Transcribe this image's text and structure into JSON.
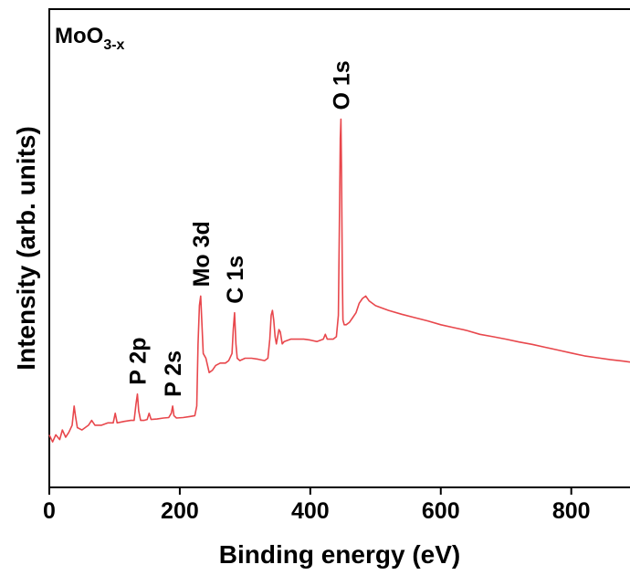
{
  "chart_data": {
    "type": "line",
    "sample_label": "MoO",
    "sample_label_sub": "3-x",
    "xlabel": "Binding energy (eV)",
    "ylabel": "Intensity (arb. units)",
    "xlim": [
      0,
      890
    ],
    "ylim": [
      0,
      100
    ],
    "x_ticks": [
      0,
      200,
      400,
      600,
      800
    ],
    "x_tick_labels": [
      "0",
      "200",
      "400",
      "600",
      "800"
    ],
    "y_ticks_shown": false,
    "line_color": "#e8474c",
    "series": [
      {
        "points": [
          [
            0,
            11
          ],
          [
            5,
            9.5
          ],
          [
            10,
            11
          ],
          [
            16,
            10
          ],
          [
            20,
            12
          ],
          [
            25,
            10.5
          ],
          [
            30,
            11.5
          ],
          [
            35,
            13
          ],
          [
            38,
            17
          ],
          [
            40,
            15
          ],
          [
            43,
            12.5
          ],
          [
            50,
            12
          ],
          [
            60,
            13
          ],
          [
            65,
            14
          ],
          [
            70,
            13
          ],
          [
            80,
            13
          ],
          [
            90,
            13.5
          ],
          [
            98,
            13.5
          ],
          [
            101,
            15.5
          ],
          [
            104,
            13.5
          ],
          [
            115,
            13.8
          ],
          [
            125,
            14
          ],
          [
            130,
            14
          ],
          [
            133,
            17.5
          ],
          [
            135,
            19.5
          ],
          [
            137,
            16
          ],
          [
            140,
            14
          ],
          [
            145,
            14
          ],
          [
            150,
            14.2
          ],
          [
            153,
            15.5
          ],
          [
            156,
            14.2
          ],
          [
            165,
            14.3
          ],
          [
            175,
            14.5
          ],
          [
            183,
            14.6
          ],
          [
            187,
            15.5
          ],
          [
            189,
            17
          ],
          [
            191,
            15
          ],
          [
            195,
            14.5
          ],
          [
            205,
            14.6
          ],
          [
            215,
            14.8
          ],
          [
            223,
            15
          ],
          [
            226,
            17
          ],
          [
            228,
            30
          ],
          [
            230,
            38
          ],
          [
            232,
            40
          ],
          [
            234,
            34
          ],
          [
            236,
            28
          ],
          [
            240,
            27
          ],
          [
            245,
            24
          ],
          [
            250,
            24.5
          ],
          [
            255,
            25.5
          ],
          [
            262,
            26
          ],
          [
            270,
            26
          ],
          [
            275,
            26.5
          ],
          [
            280,
            28
          ],
          [
            282,
            33
          ],
          [
            284,
            36.5
          ],
          [
            286,
            30
          ],
          [
            288,
            27
          ],
          [
            292,
            26.5
          ],
          [
            300,
            27
          ],
          [
            310,
            27
          ],
          [
            320,
            26.8
          ],
          [
            330,
            26.5
          ],
          [
            335,
            27
          ],
          [
            338,
            31
          ],
          [
            340,
            36
          ],
          [
            342,
            37
          ],
          [
            344,
            35
          ],
          [
            346,
            31.5
          ],
          [
            348,
            30
          ],
          [
            350,
            31.5
          ],
          [
            352,
            33
          ],
          [
            354,
            32.5
          ],
          [
            357,
            30
          ],
          [
            360,
            30.5
          ],
          [
            370,
            31
          ],
          [
            380,
            31
          ],
          [
            390,
            31
          ],
          [
            400,
            30.8
          ],
          [
            410,
            30.5
          ],
          [
            420,
            31
          ],
          [
            423,
            32
          ],
          [
            426,
            31
          ],
          [
            435,
            31
          ],
          [
            440,
            31.5
          ],
          [
            443,
            36
          ],
          [
            445,
            60
          ],
          [
            446,
            73
          ],
          [
            447,
            77
          ],
          [
            448,
            65
          ],
          [
            449,
            45
          ],
          [
            450,
            35
          ],
          [
            452,
            34
          ],
          [
            455,
            34
          ],
          [
            460,
            34.5
          ],
          [
            465,
            35.5
          ],
          [
            470,
            36.5
          ],
          [
            475,
            38.5
          ],
          [
            480,
            39.5
          ],
          [
            485,
            40
          ],
          [
            490,
            39
          ],
          [
            500,
            38
          ],
          [
            510,
            37.5
          ],
          [
            520,
            37
          ],
          [
            540,
            36.2
          ],
          [
            560,
            35.5
          ],
          [
            580,
            34.8
          ],
          [
            600,
            34
          ],
          [
            620,
            33.4
          ],
          [
            640,
            32.8
          ],
          [
            660,
            32
          ],
          [
            680,
            31.5
          ],
          [
            700,
            31
          ],
          [
            720,
            30.4
          ],
          [
            740,
            29.9
          ],
          [
            760,
            29.3
          ],
          [
            780,
            28.7
          ],
          [
            800,
            28.1
          ],
          [
            820,
            27.5
          ],
          [
            840,
            27.1
          ],
          [
            860,
            26.7
          ],
          [
            880,
            26.4
          ],
          [
            890,
            26.2
          ]
        ]
      }
    ],
    "annotations": [
      {
        "text": "P 2p",
        "x": 135
      },
      {
        "text": "P 2s",
        "x": 189
      },
      {
        "text": "Mo 3d",
        "x": 232
      },
      {
        "text": "C 1s",
        "x": 284
      },
      {
        "text": "O 1s",
        "x": 447
      }
    ]
  }
}
